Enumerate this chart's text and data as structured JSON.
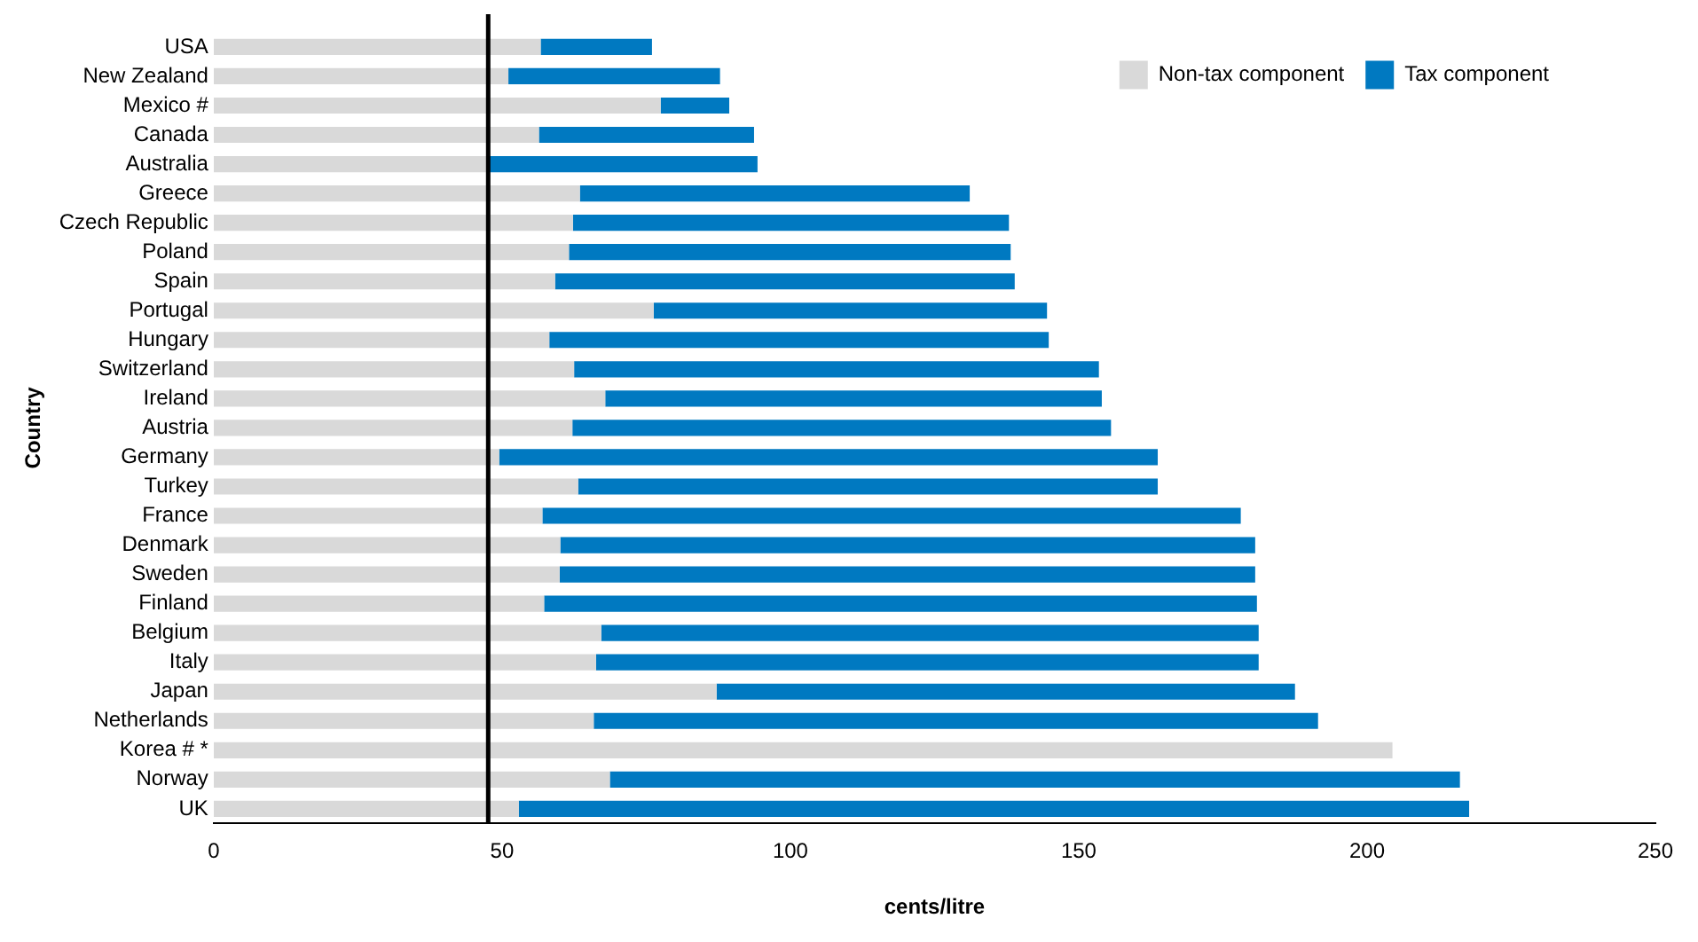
{
  "chart_data": {
    "type": "bar",
    "orientation": "horizontal",
    "stacked": true,
    "categories": [
      "USA",
      "New Zealand",
      "Mexico #",
      "Canada",
      "Australia",
      "Greece",
      "Czech Republic",
      "Poland",
      "Spain",
      "Portugal",
      "Hungary",
      "Switzerland",
      "Ireland",
      "Austria",
      "Germany",
      "Turkey",
      "France",
      "Denmark",
      "Sweden",
      "Finland",
      "Belgium",
      "Italy",
      "Japan",
      "Netherlands",
      "Korea # *",
      "Norway",
      "UK"
    ],
    "series": [
      {
        "name": "Non-tax component",
        "color": "#d9d9d9",
        "values": [
          56.7,
          51.1,
          77.5,
          56.4,
          47.6,
          63.5,
          62.3,
          61.6,
          59.2,
          76.3,
          58.2,
          62.5,
          67.9,
          62.2,
          49.5,
          63.2,
          57.0,
          60.1,
          60.0,
          57.3,
          67.2,
          66.3,
          87.2,
          65.9,
          204.4,
          68.7,
          52.9
        ]
      },
      {
        "name": "Tax component",
        "color": "#0079c1",
        "values": [
          19.3,
          36.7,
          11.9,
          37.3,
          46.7,
          67.6,
          75.6,
          76.6,
          79.7,
          68.2,
          86.6,
          91.0,
          86.1,
          93.4,
          114.2,
          100.5,
          121.1,
          120.5,
          120.6,
          123.6,
          114.0,
          114.9,
          100.3,
          125.6,
          0,
          147.4,
          164.8
        ]
      }
    ],
    "xlim": [
      0,
      250
    ],
    "xticks": [
      0,
      50,
      100,
      150,
      200,
      250
    ],
    "xlabel": "cents/litre",
    "ylabel": "Country",
    "ref_lines": [
      {
        "axis": "x",
        "value": 47.6,
        "color": "#000000"
      }
    ],
    "grid": false,
    "legend": "top right"
  }
}
